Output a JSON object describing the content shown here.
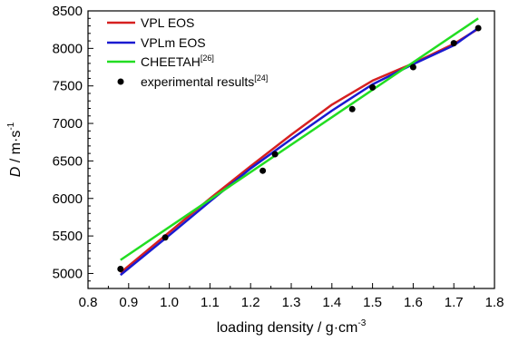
{
  "chart_data": {
    "type": "line",
    "xlabel": "loading density / g·cm",
    "xlabel_sup": "-3",
    "ylabel_var": "D",
    "ylabel_unit": " / m·s",
    "ylabel_sup": "-1",
    "xlim": [
      0.8,
      1.8
    ],
    "ylim": [
      4800,
      8500
    ],
    "x_ticks": [
      "0.8",
      "0.9",
      "1.0",
      "1.1",
      "1.2",
      "1.3",
      "1.4",
      "1.5",
      "1.6",
      "1.7",
      "1.8"
    ],
    "y_ticks": [
      "5000",
      "5500",
      "6000",
      "6500",
      "7000",
      "7500",
      "8000",
      "8500"
    ],
    "grid": false,
    "legend_position": "top-left",
    "series": [
      {
        "name": "VPL EOS",
        "color": "#d62020",
        "kind": "line",
        "x": [
          0.88,
          1.0,
          1.1,
          1.2,
          1.3,
          1.4,
          1.5,
          1.6,
          1.7,
          1.76
        ],
        "y": [
          5010,
          5550,
          6000,
          6430,
          6850,
          7250,
          7570,
          7800,
          8060,
          8260
        ]
      },
      {
        "name": "VPLm EOS",
        "color": "#1a1ad0",
        "kind": "line",
        "x": [
          0.88,
          1.0,
          1.1,
          1.2,
          1.3,
          1.4,
          1.5,
          1.6,
          1.7,
          1.76
        ],
        "y": [
          4980,
          5510,
          5960,
          6400,
          6790,
          7170,
          7520,
          7790,
          8040,
          8270
        ]
      },
      {
        "name": "CHEETAH",
        "name_sup": "[26]",
        "color": "#22dd22",
        "kind": "line",
        "x": [
          0.88,
          1.76
        ],
        "y": [
          5180,
          8400
        ]
      },
      {
        "name": "experimental results",
        "name_sup": "[24]",
        "color": "#000000",
        "kind": "scatter",
        "x": [
          0.88,
          0.99,
          1.23,
          1.26,
          1.45,
          1.5,
          1.6,
          1.7,
          1.76
        ],
        "y": [
          5060,
          5480,
          6370,
          6590,
          7190,
          7480,
          7750,
          8070,
          8270
        ]
      }
    ]
  }
}
